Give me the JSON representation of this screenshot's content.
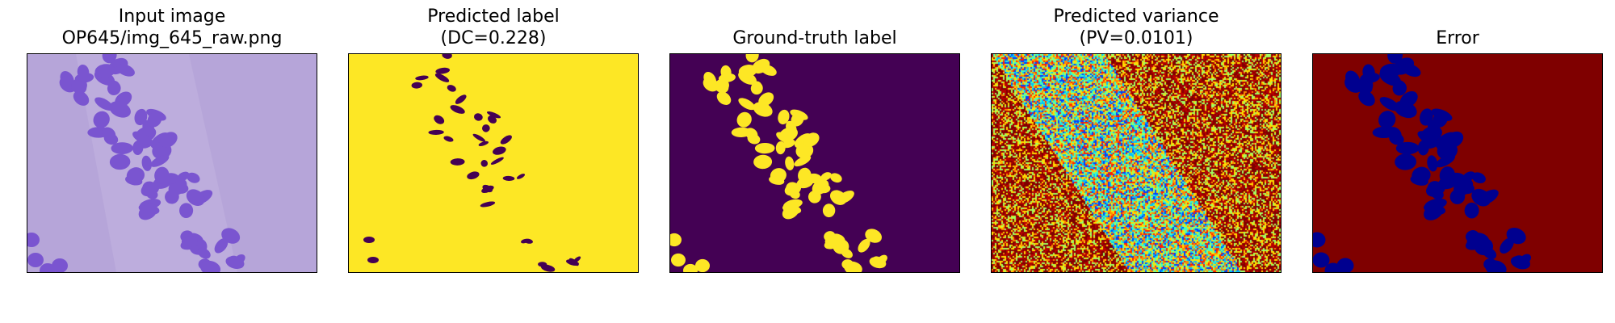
{
  "panels": [
    {
      "title_line1": "Input image",
      "title_line2": "OP645/img_645_raw.png"
    },
    {
      "title_line1": "Predicted label",
      "title_line2": "(DC=0.228)"
    },
    {
      "title_line1": "",
      "title_line2": "Ground-truth label"
    },
    {
      "title_line1": "Predicted variance",
      "title_line2": "(PV=0.0101)"
    },
    {
      "title_line1": "",
      "title_line2": "Error"
    }
  ],
  "colors": {
    "tissue_background": "#b6a5d9",
    "nucleus": "#7a55d0",
    "label_yellow": "#fde725",
    "label_purple": "#440154",
    "error_red": "#7f0000",
    "error_blue": "#00008f"
  }
}
